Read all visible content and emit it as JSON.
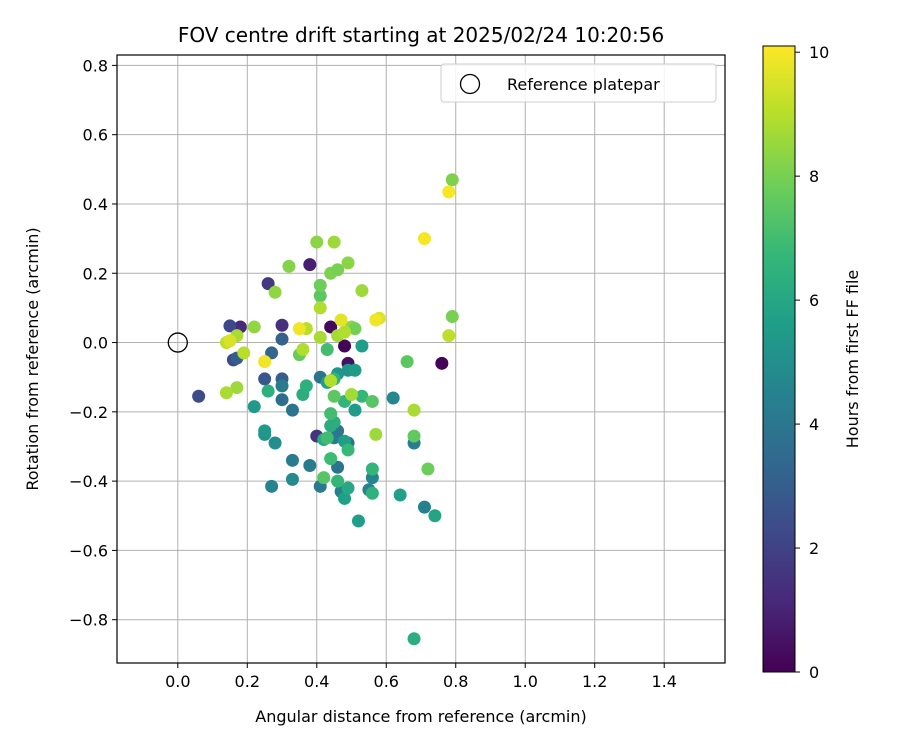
{
  "chart_data": {
    "type": "scatter",
    "title": "FOV centre drift starting at 2025/02/24 10:20:56",
    "xlabel": "Angular distance from reference (arcmin)",
    "ylabel": "Rotation from reference (arcmin)",
    "xlim": [
      -0.175,
      1.575
    ],
    "ylim": [
      -0.925,
      0.83
    ],
    "xticks": [
      0.0,
      0.2,
      0.4,
      0.6,
      0.8,
      1.0,
      1.2,
      1.4
    ],
    "xtick_labels": [
      "0.0",
      "0.2",
      "0.4",
      "0.6",
      "0.8",
      "1.0",
      "1.2",
      "1.4"
    ],
    "yticks": [
      0.8,
      0.6,
      0.4,
      0.2,
      0.0,
      -0.2,
      -0.4,
      -0.6,
      -0.8
    ],
    "ytick_labels": [
      "0.8",
      "0.6",
      "0.4",
      "0.2",
      "0.0",
      "−0.2",
      "−0.4",
      "−0.6",
      "−0.8"
    ],
    "grid": true,
    "legend": {
      "position": "top-right",
      "entries": [
        {
          "label": "Reference platepar",
          "marker": "open-circle"
        }
      ]
    },
    "reference_point": {
      "x": 0.0,
      "y": 0.0
    },
    "colorbar": {
      "label": "Hours from first FF file",
      "colormap": "viridis",
      "range": [
        0,
        10.1
      ],
      "ticks": [
        0,
        2,
        4,
        6,
        8,
        10
      ],
      "tick_labels": [
        "0",
        "2",
        "4",
        "6",
        "8",
        "10"
      ]
    },
    "points": [
      {
        "x": 0.48,
        "y": -0.01,
        "t": 0.1
      },
      {
        "x": 0.44,
        "y": 0.045,
        "t": 0.2
      },
      {
        "x": 0.76,
        "y": -0.06,
        "t": 0.1
      },
      {
        "x": 0.49,
        "y": -0.06,
        "t": 0.5
      },
      {
        "x": 0.38,
        "y": 0.225,
        "t": 0.9
      },
      {
        "x": 0.18,
        "y": 0.045,
        "t": 1.2
      },
      {
        "x": 0.3,
        "y": 0.05,
        "t": 1.4
      },
      {
        "x": 0.26,
        "y": 0.17,
        "t": 1.7
      },
      {
        "x": 0.4,
        "y": -0.27,
        "t": 1.5
      },
      {
        "x": 0.15,
        "y": 0.048,
        "t": 2.2
      },
      {
        "x": 0.16,
        "y": -0.05,
        "t": 2.3
      },
      {
        "x": 0.06,
        "y": -0.155,
        "t": 2.3
      },
      {
        "x": 0.17,
        "y": -0.045,
        "t": 3.0
      },
      {
        "x": 0.25,
        "y": -0.105,
        "t": 2.8
      },
      {
        "x": 0.27,
        "y": -0.03,
        "t": 3.3
      },
      {
        "x": 0.3,
        "y": -0.105,
        "t": 3.0
      },
      {
        "x": 0.3,
        "y": 0.01,
        "t": 3.1
      },
      {
        "x": 0.3,
        "y": -0.165,
        "t": 3.6
      },
      {
        "x": 0.33,
        "y": -0.195,
        "t": 3.9
      },
      {
        "x": 0.3,
        "y": -0.125,
        "t": 4.2
      },
      {
        "x": 0.41,
        "y": -0.1,
        "t": 3.9
      },
      {
        "x": 0.49,
        "y": -0.29,
        "t": 3.8
      },
      {
        "x": 0.46,
        "y": -0.36,
        "t": 3.9
      },
      {
        "x": 0.41,
        "y": -0.415,
        "t": 4.1
      },
      {
        "x": 0.38,
        "y": -0.355,
        "t": 4.2
      },
      {
        "x": 0.33,
        "y": -0.34,
        "t": 4.2
      },
      {
        "x": 0.45,
        "y": -0.275,
        "t": 4.3
      },
      {
        "x": 0.46,
        "y": -0.255,
        "t": 4.0
      },
      {
        "x": 0.47,
        "y": -0.43,
        "t": 4.4
      },
      {
        "x": 0.55,
        "y": -0.425,
        "t": 4.5
      },
      {
        "x": 0.56,
        "y": -0.39,
        "t": 4.6
      },
      {
        "x": 0.62,
        "y": -0.16,
        "t": 4.7
      },
      {
        "x": 0.68,
        "y": -0.29,
        "t": 4.3
      },
      {
        "x": 0.71,
        "y": -0.475,
        "t": 4.4
      },
      {
        "x": 0.27,
        "y": -0.415,
        "t": 4.6
      },
      {
        "x": 0.33,
        "y": -0.395,
        "t": 4.8
      },
      {
        "x": 0.28,
        "y": -0.29,
        "t": 5.0
      },
      {
        "x": 0.25,
        "y": -0.265,
        "t": 5.2
      },
      {
        "x": 0.25,
        "y": -0.255,
        "t": 5.4
      },
      {
        "x": 0.22,
        "y": -0.185,
        "t": 5.4
      },
      {
        "x": 0.43,
        "y": -0.115,
        "t": 5.6
      },
      {
        "x": 0.46,
        "y": -0.09,
        "t": 5.3
      },
      {
        "x": 0.49,
        "y": -0.08,
        "t": 5.2
      },
      {
        "x": 0.51,
        "y": -0.08,
        "t": 5.5
      },
      {
        "x": 0.51,
        "y": -0.195,
        "t": 5.5
      },
      {
        "x": 0.48,
        "y": -0.285,
        "t": 5.6
      },
      {
        "x": 0.48,
        "y": -0.45,
        "t": 5.7
      },
      {
        "x": 0.52,
        "y": -0.515,
        "t": 5.6
      },
      {
        "x": 0.53,
        "y": -0.01,
        "t": 5.6
      },
      {
        "x": 0.64,
        "y": -0.44,
        "t": 5.7
      },
      {
        "x": 0.74,
        "y": -0.5,
        "t": 5.9
      },
      {
        "x": 0.49,
        "y": -0.42,
        "t": 6.0
      },
      {
        "x": 0.42,
        "y": -0.28,
        "t": 6.2
      },
      {
        "x": 0.44,
        "y": -0.24,
        "t": 6.2
      },
      {
        "x": 0.45,
        "y": -0.23,
        "t": 6.3
      },
      {
        "x": 0.36,
        "y": -0.15,
        "t": 6.3
      },
      {
        "x": 0.37,
        "y": -0.125,
        "t": 6.4
      },
      {
        "x": 0.26,
        "y": -0.14,
        "t": 6.4
      },
      {
        "x": 0.45,
        "y": -0.105,
        "t": 6.5
      },
      {
        "x": 0.48,
        "y": -0.17,
        "t": 6.6
      },
      {
        "x": 0.53,
        "y": -0.155,
        "t": 6.7
      },
      {
        "x": 0.56,
        "y": -0.435,
        "t": 6.5
      },
      {
        "x": 0.56,
        "y": -0.365,
        "t": 6.6
      },
      {
        "x": 0.49,
        "y": -0.31,
        "t": 6.8
      },
      {
        "x": 0.46,
        "y": -0.4,
        "t": 6.7
      },
      {
        "x": 0.44,
        "y": -0.335,
        "t": 6.9
      },
      {
        "x": 0.43,
        "y": -0.275,
        "t": 7.0
      },
      {
        "x": 0.44,
        "y": -0.205,
        "t": 7.0
      },
      {
        "x": 0.43,
        "y": -0.02,
        "t": 7.0
      },
      {
        "x": 0.68,
        "y": -0.855,
        "t": 6.3
      },
      {
        "x": 0.42,
        "y": -0.39,
        "t": 7.4
      },
      {
        "x": 0.56,
        "y": -0.17,
        "t": 7.4
      },
      {
        "x": 0.66,
        "y": -0.055,
        "t": 7.5
      },
      {
        "x": 0.68,
        "y": -0.27,
        "t": 7.6
      },
      {
        "x": 0.72,
        "y": -0.365,
        "t": 7.8
      },
      {
        "x": 0.45,
        "y": -0.155,
        "t": 7.5
      },
      {
        "x": 0.35,
        "y": -0.035,
        "t": 7.7
      },
      {
        "x": 0.41,
        "y": 0.135,
        "t": 7.5
      },
      {
        "x": 0.41,
        "y": 0.165,
        "t": 7.8
      },
      {
        "x": 0.44,
        "y": 0.2,
        "t": 8.1
      },
      {
        "x": 0.46,
        "y": 0.21,
        "t": 8.0
      },
      {
        "x": 0.49,
        "y": 0.23,
        "t": 8.3
      },
      {
        "x": 0.32,
        "y": 0.22,
        "t": 8.2
      },
      {
        "x": 0.4,
        "y": 0.29,
        "t": 8.3
      },
      {
        "x": 0.45,
        "y": 0.29,
        "t": 8.6
      },
      {
        "x": 0.28,
        "y": 0.145,
        "t": 8.4
      },
      {
        "x": 0.22,
        "y": 0.045,
        "t": 8.4
      },
      {
        "x": 0.17,
        "y": 0.02,
        "t": 8.8
      },
      {
        "x": 0.19,
        "y": -0.03,
        "t": 9.0
      },
      {
        "x": 0.17,
        "y": -0.13,
        "t": 8.6
      },
      {
        "x": 0.14,
        "y": -0.145,
        "t": 8.8
      },
      {
        "x": 0.14,
        "y": 0.0,
        "t": 9.1
      },
      {
        "x": 0.37,
        "y": 0.04,
        "t": 9.0
      },
      {
        "x": 0.36,
        "y": -0.02,
        "t": 8.9
      },
      {
        "x": 0.41,
        "y": 0.1,
        "t": 8.9
      },
      {
        "x": 0.53,
        "y": 0.15,
        "t": 8.6
      },
      {
        "x": 0.46,
        "y": 0.02,
        "t": 8.7
      },
      {
        "x": 0.5,
        "y": 0.045,
        "t": 8.4
      },
      {
        "x": 0.51,
        "y": 0.04,
        "t": 7.9
      },
      {
        "x": 0.48,
        "y": 0.03,
        "t": 8.9
      },
      {
        "x": 0.41,
        "y": 0.015,
        "t": 8.8
      },
      {
        "x": 0.44,
        "y": -0.11,
        "t": 8.9
      },
      {
        "x": 0.5,
        "y": -0.15,
        "t": 8.7
      },
      {
        "x": 0.57,
        "y": -0.265,
        "t": 8.6
      },
      {
        "x": 0.68,
        "y": -0.195,
        "t": 8.8
      },
      {
        "x": 0.78,
        "y": 0.02,
        "t": 9.1
      },
      {
        "x": 0.79,
        "y": 0.075,
        "t": 8.0
      },
      {
        "x": 0.79,
        "y": 0.47,
        "t": 8.1
      },
      {
        "x": 0.78,
        "y": 0.435,
        "t": 10.0
      },
      {
        "x": 0.71,
        "y": 0.3,
        "t": 10.0
      },
      {
        "x": 0.58,
        "y": 0.07,
        "t": 9.6
      },
      {
        "x": 0.57,
        "y": 0.065,
        "t": 9.9
      },
      {
        "x": 0.47,
        "y": 0.065,
        "t": 9.7
      },
      {
        "x": 0.35,
        "y": 0.04,
        "t": 9.9
      },
      {
        "x": 0.25,
        "y": -0.055,
        "t": 9.9
      },
      {
        "x": 0.15,
        "y": 0.005,
        "t": 9.5
      }
    ]
  }
}
